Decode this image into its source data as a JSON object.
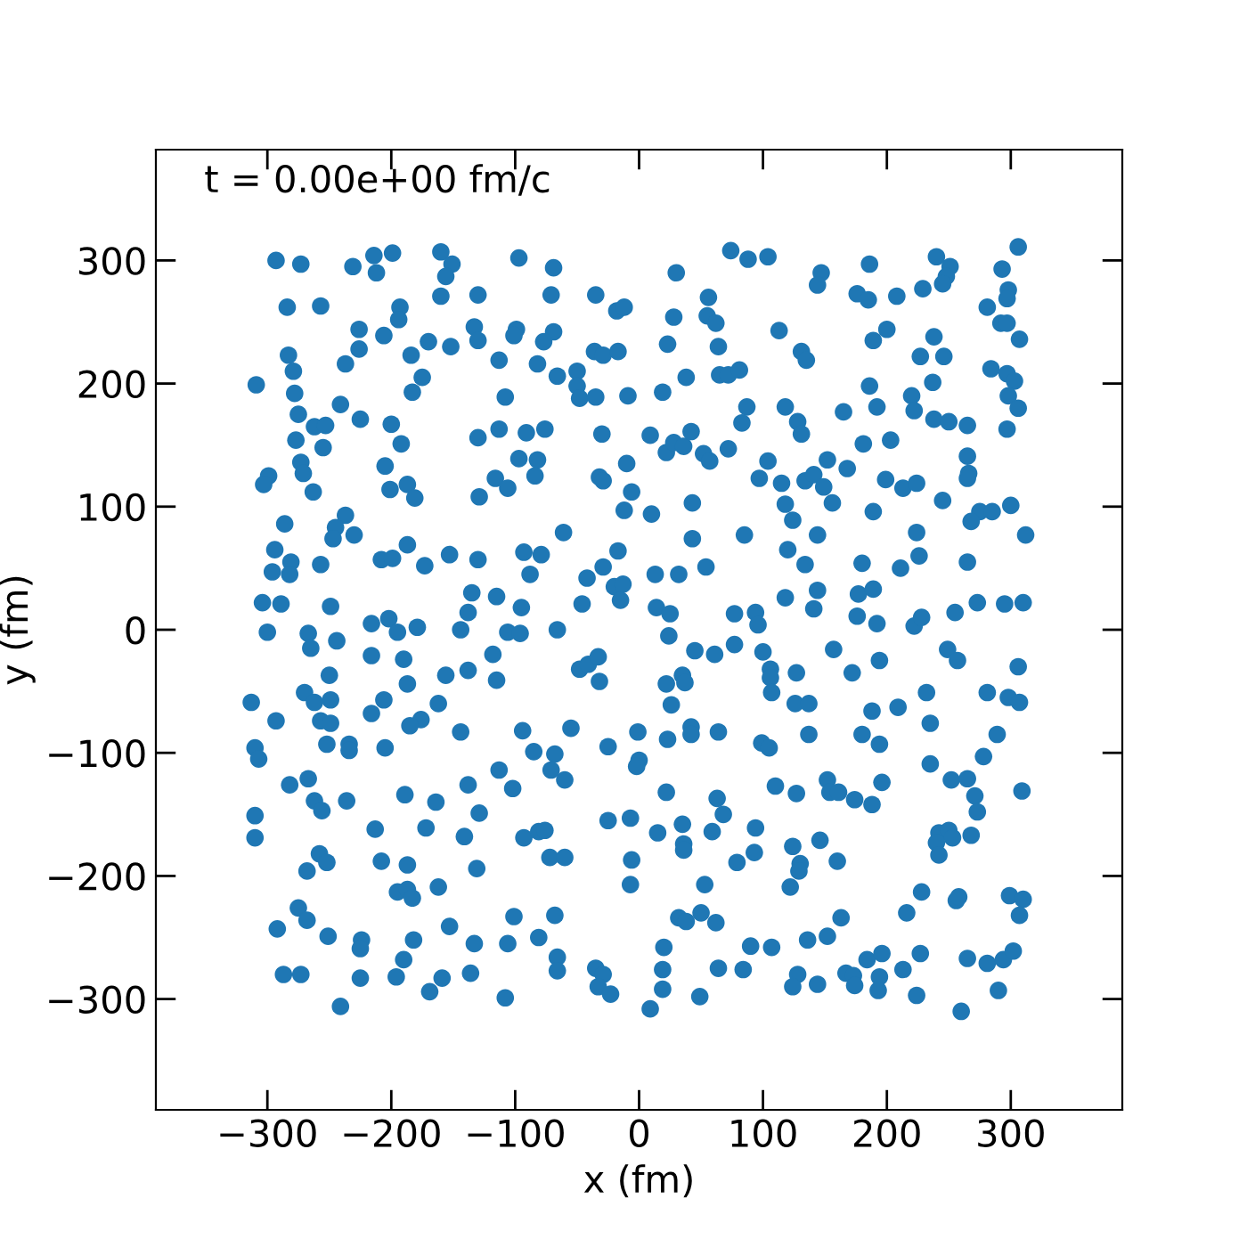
{
  "chart_data": {
    "type": "scatter",
    "xlabel": "x (fm)",
    "ylabel": "y (fm)",
    "annotations": [
      "t = 0.00e+00 fm/c"
    ],
    "xlim": [
      -390,
      390
    ],
    "ylim": [
      -390,
      390
    ],
    "xticks": [
      -300,
      -200,
      -100,
      0,
      100,
      200,
      300
    ],
    "yticks": [
      -300,
      -200,
      -100,
      0,
      100,
      200,
      300
    ],
    "marker": "circle",
    "series": [
      {
        "color": "#1f77b4",
        "x": [
          -293,
          -273,
          -231,
          -214,
          -212,
          -199,
          -160,
          -151,
          -156,
          -160,
          -130,
          -284,
          -257,
          -193,
          -194,
          -226,
          -206,
          -226,
          -237,
          -283,
          -279,
          -170,
          -184,
          -152,
          -133,
          -130,
          -309,
          -278,
          -175,
          -183,
          -241,
          -275,
          -225,
          -262,
          -253,
          -200,
          -277,
          -255,
          -192,
          -130,
          -273,
          -271,
          -299,
          -303,
          -263,
          -205,
          -201,
          -187,
          -181,
          -129,
          -286,
          -237,
          -245,
          -247,
          -230,
          -294,
          -281,
          -296,
          -282,
          -257,
          -208,
          -199,
          -187,
          -173,
          -153,
          -130,
          -304,
          -289,
          -249,
          -135,
          -138,
          -202,
          -97,
          -69,
          -71,
          -35,
          -18,
          -12,
          30,
          74,
          88,
          104,
          28,
          56,
          55,
          62,
          64,
          23,
          113,
          131,
          135,
          -99,
          -101,
          -69,
          -77,
          -82,
          -113,
          -50,
          -66,
          -50,
          -48,
          -35,
          -36,
          -29,
          -17,
          -9,
          19,
          38,
          65,
          72,
          81,
          -108,
          87,
          83,
          118,
          128,
          131,
          -113,
          -91,
          -76,
          -30,
          9,
          22,
          28,
          36,
          42,
          52,
          57,
          72,
          104,
          97,
          115,
          118,
          124,
          134,
          -97,
          -82,
          -84,
          -116,
          -106,
          -32,
          -29,
          -6,
          -10,
          -12,
          10,
          43,
          43,
          85,
          -61,
          -93,
          -79,
          -88,
          -17,
          -29,
          -42,
          -20,
          -13,
          -15,
          13,
          32,
          54,
          120,
          134,
          118,
          -115,
          -95,
          -46,
          14,
          25,
          77,
          94,
          96,
          186,
          147,
          144,
          176,
          185,
          208,
          229,
          240,
          251,
          248,
          245,
          293,
          306,
          298,
          297,
          281,
          292,
          297,
          307,
          200,
          189,
          238,
          227,
          246,
          237,
          284,
          297,
          303,
          298,
          306,
          297,
          186,
          220,
          222,
          192,
          165,
          238,
          250,
          265,
          181,
          203,
          265,
          266,
          265,
          152,
          168,
          141,
          149,
          156,
          199,
          213,
          224,
          245,
          189,
          275,
          285,
          300,
          268,
          312,
          144,
          224,
          226,
          180,
          211,
          265,
          144,
          177,
          189,
          141,
          176,
          192,
          222,
          228,
          255,
          273,
          295,
          310,
          -300,
          -267,
          -265,
          -244,
          -216,
          -216,
          -195,
          -190,
          -179,
          -144,
          -156,
          -138,
          -250,
          -187,
          -313,
          -293,
          -270,
          -262,
          -249,
          -257,
          -249,
          -216,
          -206,
          -176,
          -185,
          -162,
          -144,
          -252,
          -234,
          -234,
          -205,
          -310,
          -307,
          -282,
          -267,
          -262,
          -256,
          -236,
          -189,
          -164,
          -138,
          -129,
          -310,
          -310,
          -213,
          -172,
          -141,
          -258,
          -252,
          -268,
          -208,
          -187,
          -195,
          -187,
          -183,
          -162,
          -131,
          -275,
          -268,
          -292,
          -251,
          -224,
          -225,
          -182,
          -190,
          -153,
          -133,
          -287,
          -273,
          -225,
          -196,
          -159,
          -136,
          -169,
          -241,
          -106,
          -96,
          -66,
          24,
          -118,
          -115,
          -48,
          -41,
          -33,
          -32,
          45,
          61,
          77,
          100,
          106,
          106,
          107,
          127,
          126,
          22,
          35,
          37,
          26,
          -94,
          -55,
          -85,
          -68,
          -71,
          -60,
          -113,
          -102,
          -25,
          -1,
          0,
          -2,
          23,
          42,
          42,
          64,
          99,
          105,
          110,
          127,
          22,
          63,
          68,
          59,
          35,
          36,
          36,
          15,
          -7,
          -25,
          94,
          93,
          79,
          124,
          130,
          129,
          122,
          -93,
          -81,
          -76,
          -72,
          -60,
          -6,
          -7,
          53,
          -101,
          -68,
          -106,
          -81,
          -66,
          -66,
          -108,
          -35,
          -29,
          -33,
          -23,
          32,
          38,
          50,
          62,
          20,
          19,
          19,
          9,
          49,
          64,
          84,
          90,
          107,
          128,
          124,
          157,
          172,
          194,
          249,
          257,
          306,
          137,
          137,
          188,
          209,
          232,
          235,
          180,
          194,
          281,
          298,
          307,
          289,
          278,
          235,
          252,
          265,
          271,
          273,
          309,
          152,
          154,
          161,
          174,
          188,
          196,
          146,
          160,
          242,
          250,
          253,
          240,
          242,
          268,
          228,
          216,
          256,
          258,
          299,
          310,
          307,
          163,
          152,
          136,
          184,
          196,
          213,
          227,
          265,
          281,
          294,
          302,
          290,
          260,
          224,
          194,
          193,
          167,
          173,
          174,
          144
        ],
        "values": [
          300,
          297,
          295,
          304,
          290,
          306,
          307,
          297,
          287,
          271,
          272,
          262,
          263,
          262,
          252,
          244,
          239,
          228,
          216,
          223,
          210,
          234,
          223,
          230,
          246,
          235,
          199,
          192,
          205,
          193,
          183,
          175,
          171,
          165,
          166,
          167,
          154,
          148,
          151,
          156,
          136,
          127,
          125,
          118,
          112,
          133,
          114,
          118,
          107,
          108,
          86,
          93,
          83,
          74,
          77,
          65,
          55,
          47,
          45,
          53,
          57,
          58,
          69,
          52,
          61,
          57,
          22,
          21,
          19,
          30,
          14,
          9,
          302,
          294,
          272,
          272,
          259,
          262,
          290,
          308,
          301,
          303,
          254,
          270,
          255,
          249,
          230,
          232,
          243,
          226,
          219,
          244,
          239,
          242,
          234,
          216,
          219,
          210,
          206,
          198,
          188,
          189,
          226,
          223,
          226,
          190,
          193,
          205,
          207,
          207,
          211,
          189,
          181,
          168,
          181,
          169,
          159,
          163,
          160,
          163,
          159,
          158,
          144,
          152,
          149,
          161,
          143,
          137,
          147,
          137,
          123,
          119,
          102,
          89,
          121,
          139,
          138,
          125,
          123,
          115,
          124,
          121,
          112,
          135,
          97,
          94,
          103,
          74,
          77,
          79,
          63,
          61,
          45,
          64,
          51,
          42,
          35,
          37,
          24,
          45,
          45,
          51,
          65,
          53,
          26,
          27,
          18,
          21,
          18,
          13,
          13,
          14,
          4,
          297,
          290,
          280,
          273,
          268,
          271,
          277,
          303,
          295,
          287,
          281,
          293,
          311,
          276,
          269,
          262,
          249,
          249,
          236,
          244,
          235,
          238,
          222,
          222,
          201,
          212,
          208,
          202,
          190,
          180,
          163,
          198,
          190,
          178,
          181,
          177,
          171,
          169,
          166,
          151,
          154,
          141,
          127,
          123,
          138,
          131,
          126,
          116,
          103,
          122,
          115,
          119,
          105,
          96,
          96,
          96,
          101,
          88,
          77,
          77,
          79,
          60,
          54,
          50,
          55,
          32,
          29,
          33,
          17,
          11,
          5,
          3,
          10,
          14,
          22,
          21,
          22,
          -2,
          -3,
          -15,
          -9,
          5,
          -21,
          -2,
          -24,
          2,
          0,
          -37,
          -33,
          -37,
          -44,
          -59,
          -74,
          -51,
          -59,
          -57,
          -74,
          -76,
          -68,
          -57,
          -73,
          -78,
          -60,
          -83,
          -93,
          -93,
          -98,
          -96,
          -96,
          -105,
          -126,
          -121,
          -139,
          -147,
          -139,
          -134,
          -140,
          -126,
          -149,
          -151,
          -169,
          -162,
          -161,
          -168,
          -182,
          -189,
          -196,
          -188,
          -191,
          -213,
          -211,
          -218,
          -209,
          -194,
          -226,
          -236,
          -243,
          -249,
          -252,
          -259,
          -252,
          -268,
          -241,
          -255,
          -280,
          -280,
          -283,
          -282,
          -283,
          -279,
          -294,
          -306,
          -2,
          -3,
          0,
          -5,
          -20,
          -41,
          -32,
          -28,
          -22,
          -42,
          -17,
          -20,
          -12,
          -18,
          -32,
          -39,
          -51,
          -35,
          -60,
          -44,
          -37,
          -43,
          -61,
          -82,
          -80,
          -99,
          -101,
          -114,
          -122,
          -114,
          -129,
          -95,
          -83,
          -106,
          -111,
          -89,
          -79,
          -85,
          -83,
          -92,
          -96,
          -127,
          -133,
          -132,
          -137,
          -150,
          -164,
          -158,
          -174,
          -179,
          -165,
          -153,
          -155,
          -161,
          -181,
          -189,
          -176,
          -190,
          -196,
          -209,
          -169,
          -164,
          -163,
          -185,
          -185,
          -187,
          -207,
          -207,
          -233,
          -232,
          -255,
          -250,
          -266,
          -277,
          -299,
          -275,
          -280,
          -290,
          -296,
          -234,
          -237,
          -230,
          -238,
          -258,
          -276,
          -292,
          -308,
          -298,
          -275,
          -276,
          -257,
          -258,
          -280,
          -290,
          -16,
          -35,
          -25,
          -16,
          -25,
          -30,
          -60,
          -85,
          -66,
          -63,
          -51,
          -76,
          -85,
          -93,
          -51,
          -55,
          -59,
          -85,
          -103,
          -109,
          -122,
          -121,
          -135,
          -148,
          -131,
          -122,
          -132,
          -132,
          -138,
          -142,
          -124,
          -171,
          -188,
          -165,
          -163,
          -169,
          -173,
          -183,
          -167,
          -213,
          -230,
          -220,
          -217,
          -216,
          -219,
          -232,
          -234,
          -249,
          -252,
          -268,
          -263,
          -276,
          -263,
          -267,
          -271,
          -268,
          -261,
          -293,
          -310,
          -297,
          -282,
          -293,
          -279,
          -281,
          -289,
          -288
        ]
      }
    ]
  }
}
